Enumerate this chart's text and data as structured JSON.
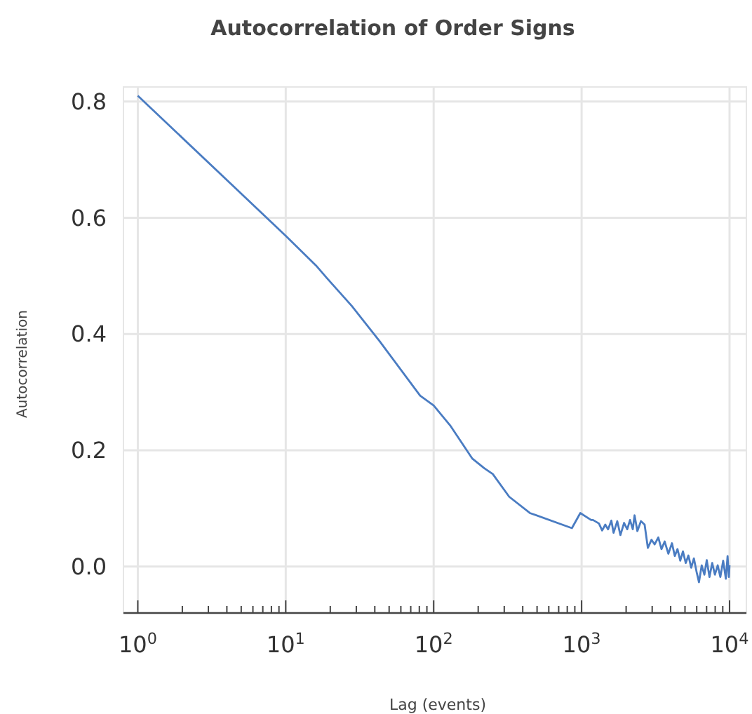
{
  "chart_data": {
    "type": "line",
    "title": "Autocorrelation of Order Signs",
    "xlabel": "Lag (events)",
    "ylabel": "Autocorrelation",
    "log": "x",
    "grid": true,
    "xlim": [
      0.8,
      13000
    ],
    "ylim": [
      -0.08,
      0.825
    ],
    "xticks": [
      {
        "value": 1,
        "label": "10$^{0}$"
      },
      {
        "value": 2,
        "label": null
      },
      {
        "value": 3,
        "label": null
      },
      {
        "value": 4,
        "label": null
      },
      {
        "value": 5,
        "label": null
      },
      {
        "value": 6,
        "label": null
      },
      {
        "value": 7,
        "label": null
      },
      {
        "value": 8,
        "label": null
      },
      {
        "value": 9,
        "label": null
      },
      {
        "value": 10,
        "label": "10$^{1}$"
      },
      {
        "value": 20,
        "label": null
      },
      {
        "value": 30,
        "label": null
      },
      {
        "value": 40,
        "label": null
      },
      {
        "value": 50,
        "label": null
      },
      {
        "value": 60,
        "label": null
      },
      {
        "value": 70,
        "label": null
      },
      {
        "value": 80,
        "label": null
      },
      {
        "value": 90,
        "label": null
      },
      {
        "value": 100,
        "label": "10$^{2}$"
      },
      {
        "value": 200,
        "label": null
      },
      {
        "value": 300,
        "label": null
      },
      {
        "value": 400,
        "label": null
      },
      {
        "value": 500,
        "label": null
      },
      {
        "value": 600,
        "label": null
      },
      {
        "value": 700,
        "label": null
      },
      {
        "value": 800,
        "label": null
      },
      {
        "value": 900,
        "label": null
      },
      {
        "value": 1000,
        "label": "10$^{3}$"
      },
      {
        "value": 2000,
        "label": null
      },
      {
        "value": 3000,
        "label": null
      },
      {
        "value": 4000,
        "label": null
      },
      {
        "value": 5000,
        "label": null
      },
      {
        "value": 6000,
        "label": null
      },
      {
        "value": 7000,
        "label": null
      },
      {
        "value": 8000,
        "label": null
      },
      {
        "value": 9000,
        "label": null
      },
      {
        "value": 10000,
        "label": "10$^{4}$"
      }
    ],
    "yticks": [
      {
        "value": 0,
        "label": "0.0"
      },
      {
        "value": 0.2,
        "label": "0.2"
      },
      {
        "value": 0.4,
        "label": "0.4"
      },
      {
        "value": 0.6,
        "label": "0.6"
      },
      {
        "value": 0.8,
        "label": "0.8"
      }
    ],
    "series": [
      {
        "color": "#4a7cc2",
        "x": [
          1,
          10,
          16,
          19,
          28,
          43,
          81,
          100,
          129,
          182,
          220,
          251,
          324,
          447,
          860,
          980,
          1160,
          1194,
          1310,
          1377,
          1446,
          1510,
          1589,
          1645,
          1742,
          1830,
          1937,
          2035,
          2125,
          2218,
          2281,
          2382,
          2519,
          2667,
          2805,
          2968,
          3117,
          3301,
          3467,
          3644,
          3857,
          4083,
          4266,
          4448,
          4645,
          4842,
          5058,
          5272,
          5508,
          5741,
          5997,
          6215,
          6486,
          6761,
          7015,
          7316,
          7638,
          7962,
          8318,
          8670,
          9057,
          9441,
          9700,
          9900,
          10000
        ],
        "values": [
          0.81,
          0.569,
          0.518,
          0.496,
          0.448,
          0.388,
          0.294,
          0.277,
          0.243,
          0.186,
          0.169,
          0.159,
          0.12,
          0.092,
          0.066,
          0.092,
          0.08,
          0.08,
          0.074,
          0.062,
          0.072,
          0.064,
          0.079,
          0.058,
          0.078,
          0.054,
          0.075,
          0.064,
          0.08,
          0.064,
          0.088,
          0.061,
          0.078,
          0.072,
          0.032,
          0.046,
          0.038,
          0.05,
          0.03,
          0.043,
          0.022,
          0.04,
          0.018,
          0.03,
          0.01,
          0.026,
          0.006,
          0.019,
          -0.002,
          0.014,
          -0.01,
          -0.027,
          0.002,
          -0.014,
          0.011,
          -0.018,
          0.006,
          -0.014,
          0.002,
          -0.018,
          0.01,
          -0.021,
          0.018,
          -0.018,
          0.002
        ]
      }
    ]
  }
}
